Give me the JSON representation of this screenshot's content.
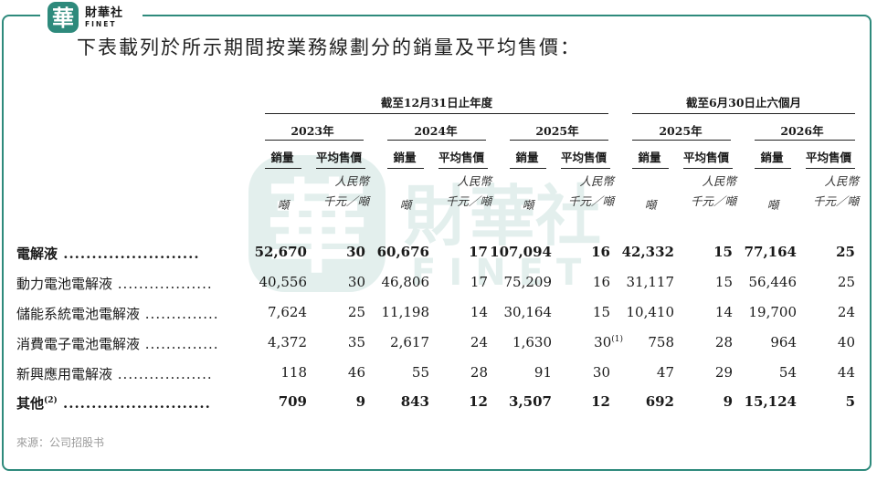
{
  "logo": {
    "glyph": "華",
    "name_cn": "財華社",
    "name_en": "FINET"
  },
  "headline": "下表載列於所示期間按業務線劃分的銷量及平均售價：",
  "groups": {
    "annual": "截至12月31日止年度",
    "half": "截至6月30日止六個月"
  },
  "years": [
    "2023年",
    "2024年",
    "2025年",
    "2025年",
    "2026年"
  ],
  "col_headers": {
    "volume": "銷量",
    "price": "平均售價"
  },
  "units": {
    "volume": "噸",
    "price_line1": "人民幣",
    "price_line2": "千元／噸"
  },
  "rows": [
    {
      "label": "電解液",
      "dots": " ........................",
      "bold": true,
      "values": [
        "52,670",
        "30",
        "60,676",
        "17",
        "107,094",
        "16",
        "42,332",
        "15",
        "77,164",
        "25"
      ]
    },
    {
      "label": "動力電池電解液",
      "dots": " ..................",
      "bold": false,
      "values": [
        "40,556",
        "30",
        "46,806",
        "17",
        "75,209",
        "16",
        "31,117",
        "15",
        "56,446",
        "25"
      ]
    },
    {
      "label": "儲能系統電池電解液",
      "dots": " ..............",
      "bold": false,
      "values": [
        "7,624",
        "25",
        "11,198",
        "14",
        "30,164",
        "15",
        "10,410",
        "14",
        "19,700",
        "24"
      ]
    },
    {
      "label": "消費電子電池電解液",
      "dots": " ..............",
      "bold": false,
      "values": [
        "4,372",
        "35",
        "2,617",
        "24",
        "1,630",
        "30",
        "758",
        "28",
        "964",
        "40"
      ]
    },
    {
      "label": "新興應用電解液",
      "dots": " ..................",
      "bold": false,
      "values": [
        "118",
        "46",
        "55",
        "28",
        "91",
        "30",
        "47",
        "29",
        "54",
        "44"
      ]
    },
    {
      "label": "其他",
      "dots": " ..........................",
      "bold": true,
      "values": [
        "709",
        "9",
        "843",
        "12",
        "3,507",
        "12",
        "692",
        "9",
        "15,124",
        "5"
      ]
    }
  ],
  "footnotes": {
    "consumer_2025_price": "(1)",
    "other_label": "(2)"
  },
  "source": "來源：公司招股书",
  "colors": {
    "frame": "#2e8a7c",
    "logo": "#2e8a7c",
    "text": "#1a1a1a"
  }
}
